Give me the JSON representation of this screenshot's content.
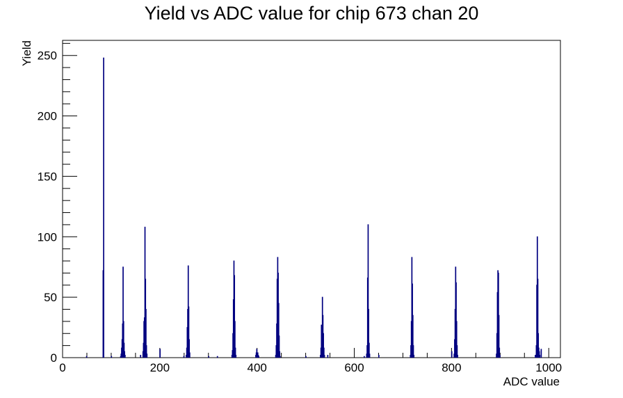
{
  "chart_data": {
    "type": "bar",
    "title": "Yield vs ADC value for chip 673 chan 20",
    "xlabel": "ADC value",
    "ylabel": "Yield",
    "xlim": [
      0,
      1024
    ],
    "ylim": [
      0,
      262.5
    ],
    "x_ticks": [
      "0",
      "200",
      "400",
      "600",
      "800",
      "1000"
    ],
    "y_ticks": [
      "0",
      "50",
      "100",
      "150",
      "200",
      "250"
    ],
    "grid": false,
    "legend": "none",
    "line_color": "#000080",
    "bin_width": 1,
    "bins": [
      [
        49,
        1
      ],
      [
        83,
        72
      ],
      [
        84,
        248
      ],
      [
        100,
        1
      ],
      [
        119,
        1
      ],
      [
        120,
        3
      ],
      [
        121,
        8
      ],
      [
        122,
        15
      ],
      [
        123,
        28
      ],
      [
        124,
        75
      ],
      [
        125,
        30
      ],
      [
        126,
        12
      ],
      [
        127,
        5
      ],
      [
        128,
        2
      ],
      [
        160,
        2
      ],
      [
        165,
        5
      ],
      [
        166,
        12
      ],
      [
        167,
        30
      ],
      [
        168,
        33
      ],
      [
        169,
        108
      ],
      [
        170,
        65
      ],
      [
        171,
        40
      ],
      [
        172,
        10
      ],
      [
        173,
        3
      ],
      [
        200,
        7
      ],
      [
        249,
        1
      ],
      [
        254,
        2
      ],
      [
        255,
        8
      ],
      [
        256,
        25
      ],
      [
        257,
        40
      ],
      [
        258,
        76
      ],
      [
        259,
        42
      ],
      [
        260,
        15
      ],
      [
        261,
        4
      ],
      [
        300,
        1
      ],
      [
        318,
        1
      ],
      [
        348,
        2
      ],
      [
        349,
        6
      ],
      [
        350,
        20
      ],
      [
        351,
        48
      ],
      [
        352,
        80
      ],
      [
        353,
        68
      ],
      [
        354,
        30
      ],
      [
        355,
        8
      ],
      [
        356,
        2
      ],
      [
        397,
        2
      ],
      [
        398,
        4
      ],
      [
        399,
        7
      ],
      [
        400,
        3
      ],
      [
        401,
        4
      ],
      [
        402,
        2
      ],
      [
        403,
        1
      ],
      [
        438,
        2
      ],
      [
        439,
        10
      ],
      [
        440,
        28
      ],
      [
        441,
        65
      ],
      [
        442,
        83
      ],
      [
        443,
        70
      ],
      [
        444,
        45
      ],
      [
        445,
        18
      ],
      [
        446,
        5
      ],
      [
        447,
        1
      ],
      [
        500,
        1
      ],
      [
        530,
        2
      ],
      [
        531,
        8
      ],
      [
        532,
        27
      ],
      [
        533,
        22
      ],
      [
        534,
        50
      ],
      [
        535,
        35
      ],
      [
        536,
        20
      ],
      [
        537,
        8
      ],
      [
        538,
        2
      ],
      [
        545,
        2
      ],
      [
        620,
        1
      ],
      [
        625,
        3
      ],
      [
        626,
        10
      ],
      [
        627,
        66
      ],
      [
        628,
        110
      ],
      [
        629,
        40
      ],
      [
        630,
        12
      ],
      [
        631,
        3
      ],
      [
        650,
        2
      ],
      [
        715,
        2
      ],
      [
        716,
        10
      ],
      [
        717,
        30
      ],
      [
        718,
        83
      ],
      [
        719,
        61
      ],
      [
        720,
        35
      ],
      [
        721,
        10
      ],
      [
        722,
        2
      ],
      [
        800,
        5
      ],
      [
        805,
        3
      ],
      [
        806,
        15
      ],
      [
        807,
        40
      ],
      [
        808,
        75
      ],
      [
        809,
        62
      ],
      [
        810,
        30
      ],
      [
        811,
        10
      ],
      [
        812,
        2
      ],
      [
        892,
        3
      ],
      [
        893,
        20
      ],
      [
        894,
        54
      ],
      [
        895,
        72
      ],
      [
        896,
        70
      ],
      [
        897,
        35
      ],
      [
        898,
        8
      ],
      [
        899,
        2
      ],
      [
        972,
        2
      ],
      [
        974,
        10
      ],
      [
        975,
        60
      ],
      [
        976,
        100
      ],
      [
        977,
        65
      ],
      [
        978,
        20
      ],
      [
        979,
        8
      ],
      [
        980,
        5
      ],
      [
        981,
        2
      ],
      [
        984,
        7
      ]
    ]
  }
}
